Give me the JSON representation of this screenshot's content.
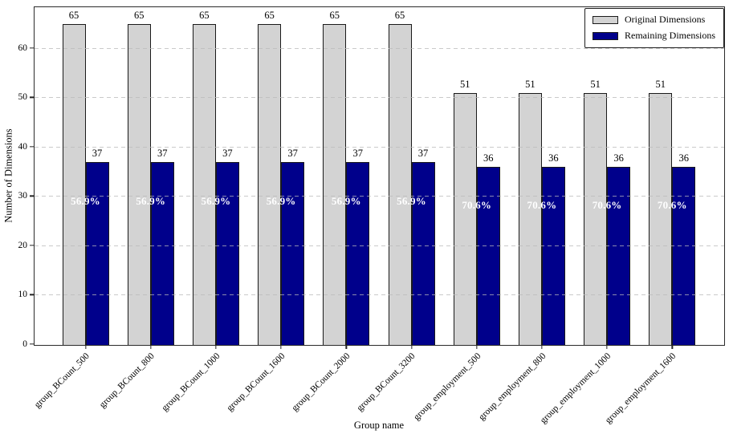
{
  "chart_data": {
    "type": "bar",
    "title": "",
    "xlabel": "Group name",
    "ylabel": "Number of Dimensions",
    "categories": [
      "group_BCount_500",
      "group_BCount_800",
      "group_BCount_1000",
      "group_BCount_1600",
      "group_BCount_2000",
      "group_BCount_3200",
      "group_employment_500",
      "group_employment_800",
      "group_employment_1000",
      "group_employment_1600"
    ],
    "series": [
      {
        "name": "Original Dimensions",
        "color": "#d3d3d3",
        "edge_color": "#1a1a1a",
        "values": [
          65,
          65,
          65,
          65,
          65,
          65,
          51,
          51,
          51,
          51
        ]
      },
      {
        "name": "Remaining Dimensions",
        "color": "#00008b",
        "edge_color": "#1a1a1a",
        "values": [
          37,
          37,
          37,
          37,
          37,
          37,
          36,
          36,
          36,
          36
        ]
      }
    ],
    "percent_labels": [
      "56.9%",
      "56.9%",
      "56.9%",
      "56.9%",
      "56.9%",
      "56.9%",
      "70.6%",
      "70.6%",
      "70.6%",
      "70.6%"
    ],
    "percent_label_color": "#ffffff",
    "ylim": [
      0,
      68.25
    ],
    "yticks": [
      0,
      10,
      20,
      30,
      40,
      50,
      60
    ],
    "grid": "horizontal-dashed",
    "grid_color": "#b9b9b9",
    "legend_position": "upper-right",
    "background_color": "#ffffff"
  }
}
